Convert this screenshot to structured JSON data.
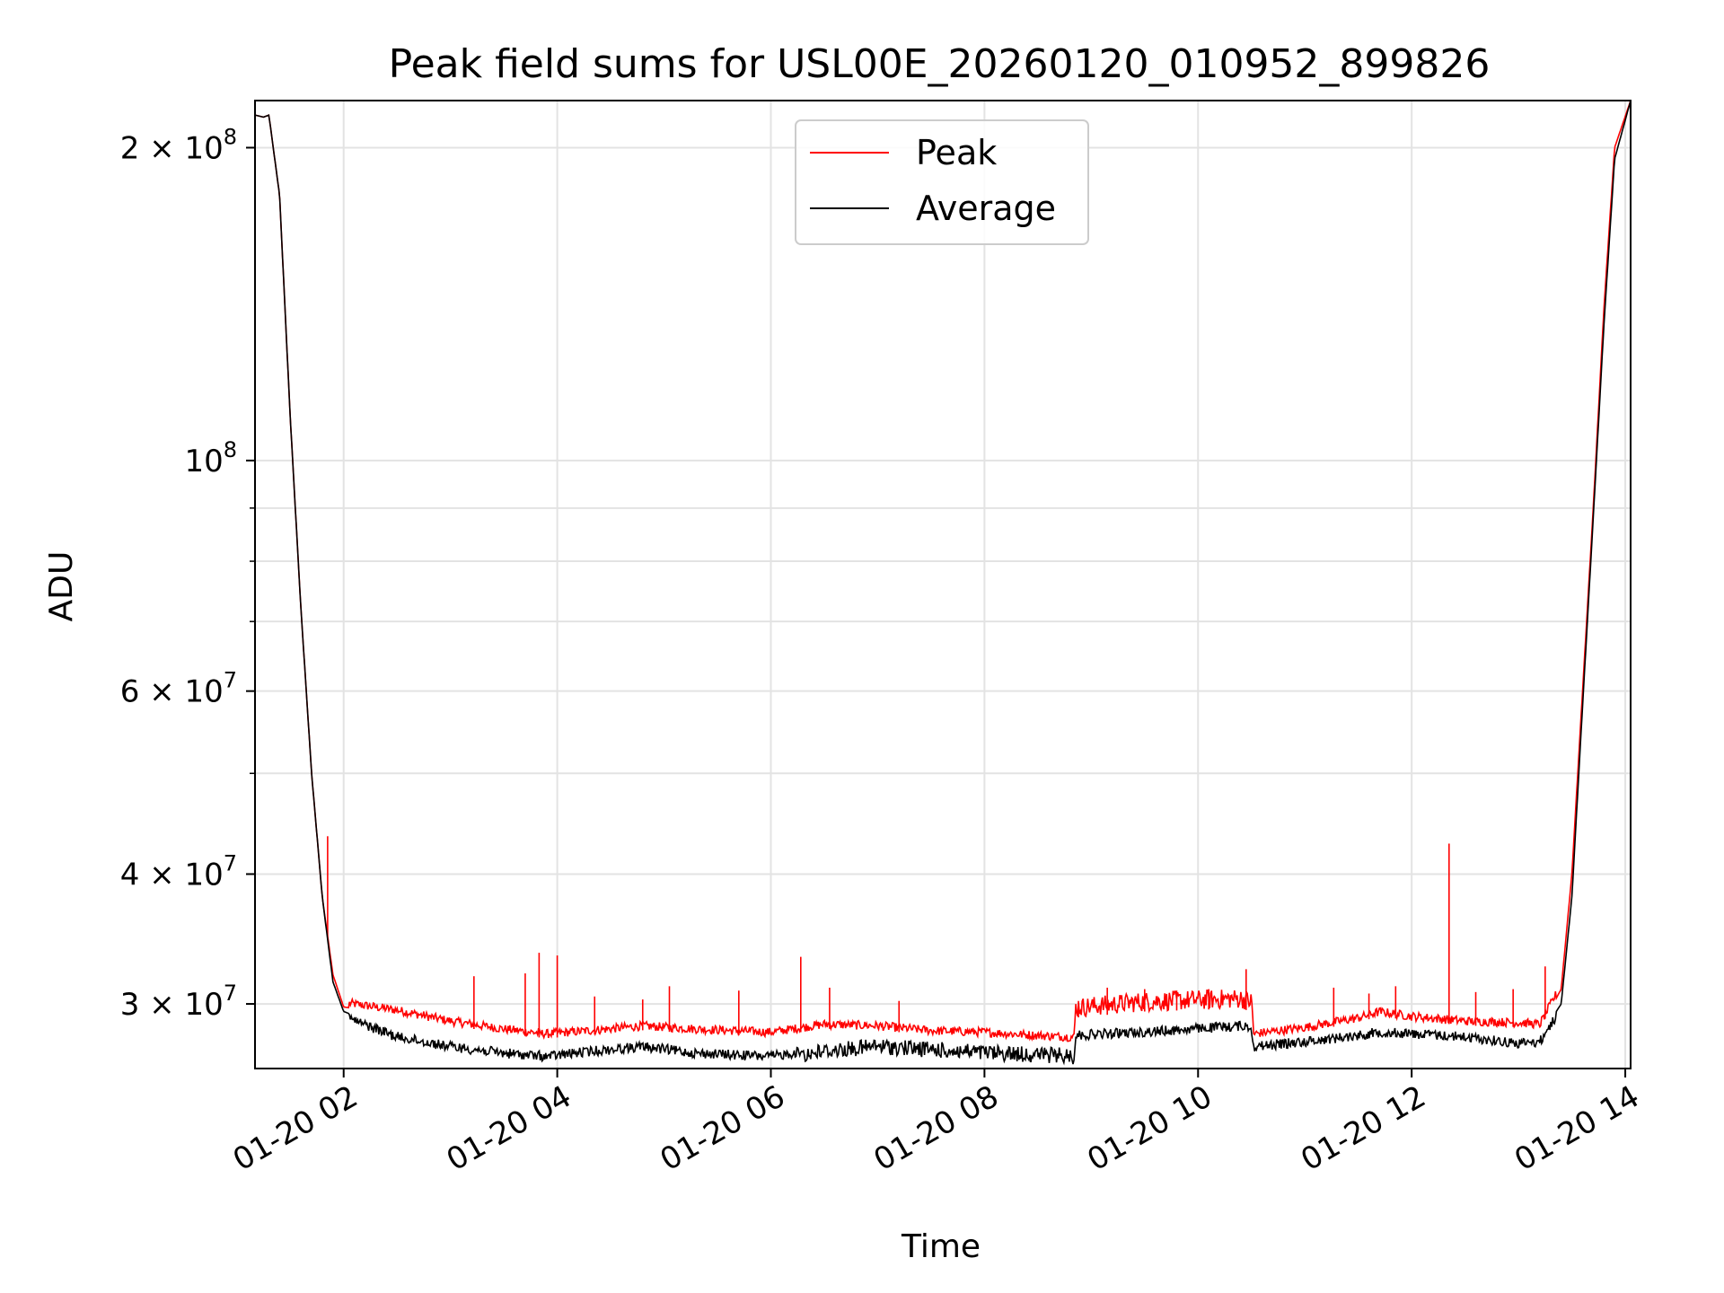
{
  "chart_data": {
    "type": "line",
    "title": "Peak field sums for USL00E_20260120_010952_899826",
    "xlabel": "Time",
    "ylabel": "ADU",
    "yscale": "log",
    "grid": true,
    "legend_position": "top-center",
    "xlim_hours": [
      1.17,
      14.05
    ],
    "ylim": [
      26000000,
      222000000
    ],
    "x_ticks": [
      {
        "value": 2,
        "label": "01-20 02"
      },
      {
        "value": 4,
        "label": "01-20 04"
      },
      {
        "value": 6,
        "label": "01-20 06"
      },
      {
        "value": 8,
        "label": "01-20 08"
      },
      {
        "value": 10,
        "label": "01-20 10"
      },
      {
        "value": 12,
        "label": "01-20 12"
      },
      {
        "value": 14,
        "label": "01-20 14"
      }
    ],
    "y_major_ticks": [
      {
        "value": 30000000,
        "base": "3 × 10",
        "exp": "7"
      },
      {
        "value": 40000000,
        "base": "4 × 10",
        "exp": "7"
      },
      {
        "value": 60000000,
        "base": "6 × 10",
        "exp": "7"
      },
      {
        "value": 100000000,
        "base": "10",
        "exp": "8"
      },
      {
        "value": 200000000,
        "base": "2 × 10",
        "exp": "8"
      }
    ],
    "y_minor_ticks": [
      50000000,
      70000000,
      80000000,
      90000000
    ],
    "series": [
      {
        "name": "Peak",
        "color": "#ff0000",
        "x": [
          1.17,
          1.25,
          1.3,
          1.4,
          1.5,
          1.6,
          1.7,
          1.8,
          1.9,
          2.0,
          2.5,
          3.0,
          3.5,
          3.9,
          4.3,
          4.8,
          5.3,
          6.0,
          6.5,
          7.0,
          7.5,
          8.0,
          8.5,
          8.84,
          8.85,
          9.5,
          10.4,
          10.5,
          10.52,
          11.0,
          11.5,
          11.7,
          12.0,
          12.5,
          13.0,
          13.2,
          13.4,
          13.5,
          13.6,
          13.7,
          13.8,
          13.9,
          14.05
        ],
        "y": [
          215000000,
          214000000,
          215000000,
          180000000,
          110000000,
          72000000,
          50000000,
          38000000,
          32000000,
          29800000,
          29300000,
          28600000,
          28100000,
          27800000,
          28000000,
          28300000,
          28100000,
          27900000,
          28400000,
          28300000,
          28000000,
          27900000,
          27700000,
          27600000,
          29100000,
          29500000,
          29700000,
          29500000,
          27800000,
          28200000,
          28800000,
          29200000,
          28900000,
          28600000,
          28500000,
          28400000,
          31000000,
          40000000,
          60000000,
          90000000,
          140000000,
          200000000,
          222000000
        ],
        "spikes": [
          {
            "x": 1.85,
            "y": 43500000
          },
          {
            "x": 3.22,
            "y": 31900000
          },
          {
            "x": 3.7,
            "y": 32100000
          },
          {
            "x": 3.83,
            "y": 33600000
          },
          {
            "x": 4.0,
            "y": 33400000
          },
          {
            "x": 4.35,
            "y": 30500000
          },
          {
            "x": 4.8,
            "y": 30300000
          },
          {
            "x": 5.05,
            "y": 31200000
          },
          {
            "x": 5.7,
            "y": 30900000
          },
          {
            "x": 6.28,
            "y": 33300000
          },
          {
            "x": 6.55,
            "y": 31100000
          },
          {
            "x": 7.2,
            "y": 30200000
          },
          {
            "x": 8.88,
            "y": 30200000
          },
          {
            "x": 9.15,
            "y": 31100000
          },
          {
            "x": 9.5,
            "y": 31000000
          },
          {
            "x": 9.8,
            "y": 30900000
          },
          {
            "x": 10.1,
            "y": 31000000
          },
          {
            "x": 10.45,
            "y": 32400000
          },
          {
            "x": 11.27,
            "y": 31100000
          },
          {
            "x": 11.6,
            "y": 30700000
          },
          {
            "x": 11.85,
            "y": 31200000
          },
          {
            "x": 12.35,
            "y": 42800000
          },
          {
            "x": 12.6,
            "y": 30800000
          },
          {
            "x": 12.95,
            "y": 31000000
          },
          {
            "x": 13.25,
            "y": 32600000
          }
        ]
      },
      {
        "name": "Average",
        "color": "#000000",
        "x": [
          1.17,
          1.25,
          1.3,
          1.4,
          1.5,
          1.6,
          1.7,
          1.8,
          1.9,
          2.0,
          2.5,
          3.0,
          3.5,
          3.9,
          4.3,
          4.8,
          5.3,
          6.0,
          6.5,
          7.0,
          7.5,
          8.0,
          8.5,
          8.84,
          8.85,
          9.5,
          10.4,
          10.5,
          10.52,
          11.0,
          11.5,
          11.7,
          12.0,
          12.5,
          13.0,
          13.2,
          13.4,
          13.5,
          13.6,
          13.7,
          13.8,
          13.9,
          14.05
        ],
        "y": [
          215000000,
          214000000,
          215000000,
          180000000,
          110000000,
          72000000,
          50000000,
          38000000,
          31500000,
          29500000,
          28200000,
          27600000,
          27200000,
          27000000,
          27300000,
          27600000,
          27200000,
          27000000,
          27500000,
          27800000,
          27600000,
          27400000,
          27300000,
          27200000,
          28300000,
          28500000,
          28900000,
          28800000,
          27600000,
          27900000,
          28300000,
          28500000,
          28400000,
          28200000,
          27800000,
          27900000,
          30000000,
          38000000,
          58000000,
          88000000,
          135000000,
          195000000,
          222000000
        ]
      }
    ]
  }
}
